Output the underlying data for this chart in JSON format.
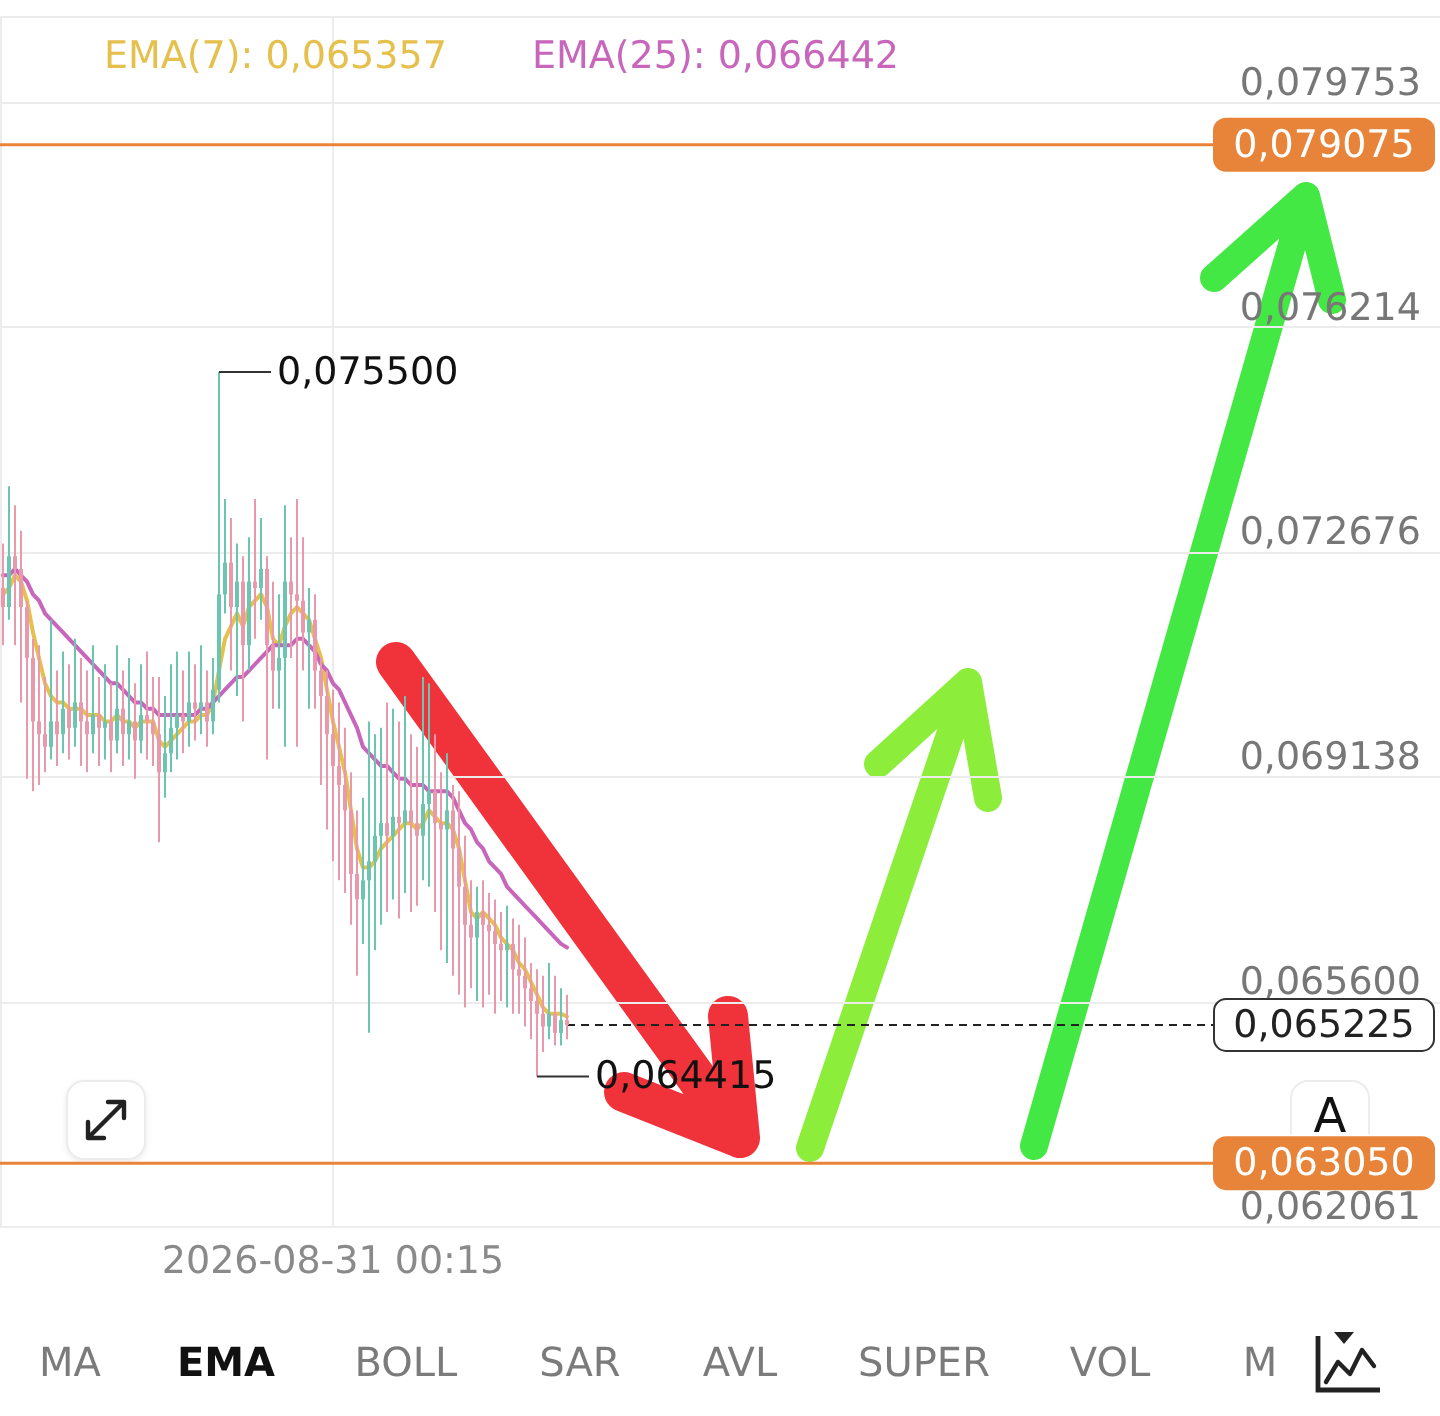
{
  "chart_data": {
    "type": "candlestick",
    "categories": [
      null,
      null,
      null,
      null,
      null,
      null,
      null,
      null,
      null,
      null,
      null,
      null,
      null,
      null,
      null,
      null,
      null,
      null,
      null,
      null,
      null,
      null,
      null,
      null,
      null,
      null,
      null,
      null,
      null,
      null,
      null,
      null,
      null,
      null,
      null,
      null,
      null,
      null,
      null,
      null,
      null,
      null,
      null,
      null,
      null,
      null,
      null,
      null,
      null,
      null,
      null,
      null,
      null,
      null,
      null,
      "2026-08-31 00:15",
      null,
      null,
      null,
      null,
      null,
      null,
      null,
      null,
      null,
      null,
      null,
      null,
      null,
      null,
      null,
      null,
      null,
      null,
      null,
      null,
      null,
      null,
      null,
      null,
      null,
      null,
      null,
      null,
      null,
      null,
      null,
      null,
      null,
      null,
      null,
      null,
      null,
      null,
      null,
      null,
      null,
      null,
      null,
      null,
      null,
      null,
      null,
      null,
      null,
      null,
      null,
      null,
      null,
      null,
      null,
      null,
      null,
      null,
      null,
      null,
      null,
      null,
      null,
      null,
      null,
      null,
      null,
      null,
      null,
      null,
      null,
      null,
      null,
      null,
      null,
      null,
      null,
      null,
      null,
      null,
      null,
      null,
      null,
      null,
      null,
      null,
      null,
      null,
      null,
      null,
      null,
      null,
      null,
      null,
      null,
      null,
      null,
      null,
      null,
      null,
      null,
      null,
      null,
      null,
      null,
      null,
      null,
      null,
      null,
      null,
      null,
      null,
      null,
      null,
      null,
      null,
      null,
      null,
      null,
      null,
      null,
      null,
      null,
      null,
      null,
      null,
      null,
      null,
      null,
      null,
      null,
      null,
      null,
      null,
      null,
      null,
      null,
      null,
      null,
      null,
      null,
      null,
      null,
      null,
      null,
      null,
      null,
      null,
      null,
      null,
      null,
      null,
      null,
      null,
      null,
      null,
      null,
      null,
      null,
      null,
      null,
      null,
      null,
      null,
      null,
      null,
      null,
      null,
      null,
      null,
      null,
      null,
      null,
      null,
      null,
      null,
      null,
      null,
      null,
      null,
      null,
      null,
      null,
      null
    ],
    "ohlc": [
      [
        0.0721,
        0.0728,
        0.0712,
        0.0718
      ],
      [
        0.0718,
        0.0737,
        0.0716,
        0.0726
      ],
      [
        0.0726,
        0.0734,
        0.0712,
        0.0724
      ],
      [
        0.0724,
        0.073,
        0.0703,
        0.0718
      ],
      [
        0.0718,
        0.0719,
        0.0691,
        0.071
      ],
      [
        0.071,
        0.0713,
        0.0689,
        0.07
      ],
      [
        0.07,
        0.0712,
        0.069,
        0.0698
      ],
      [
        0.0698,
        0.0707,
        0.0692,
        0.0696
      ],
      [
        0.0696,
        0.0716,
        0.0694,
        0.07
      ],
      [
        0.07,
        0.0708,
        0.0693,
        0.0698
      ],
      [
        0.0698,
        0.0711,
        0.0695,
        0.0702
      ],
      [
        0.0702,
        0.0709,
        0.0694,
        0.0699
      ],
      [
        0.0699,
        0.0713,
        0.0696,
        0.0703
      ],
      [
        0.0703,
        0.071,
        0.0693,
        0.07
      ],
      [
        0.07,
        0.0708,
        0.0692,
        0.0698
      ],
      [
        0.0698,
        0.0712,
        0.0695,
        0.0701
      ],
      [
        0.0701,
        0.0707,
        0.0693,
        0.0699
      ],
      [
        0.0699,
        0.0709,
        0.0694,
        0.07
      ],
      [
        0.07,
        0.0706,
        0.0692,
        0.0697
      ],
      [
        0.0697,
        0.0712,
        0.0695,
        0.0702
      ],
      [
        0.0702,
        0.0708,
        0.0693,
        0.0698
      ],
      [
        0.0698,
        0.071,
        0.0694,
        0.07
      ],
      [
        0.07,
        0.0706,
        0.0691,
        0.0697
      ],
      [
        0.0697,
        0.0709,
        0.0695,
        0.0701
      ],
      [
        0.0701,
        0.0711,
        0.0694,
        0.07
      ],
      [
        0.07,
        0.0707,
        0.0693,
        0.0698
      ],
      [
        0.0698,
        0.0707,
        0.0681,
        0.0692
      ],
      [
        0.0692,
        0.0704,
        0.0688,
        0.0695
      ],
      [
        0.0695,
        0.0709,
        0.0692,
        0.0699
      ],
      [
        0.0699,
        0.0711,
        0.0694,
        0.0701
      ],
      [
        0.0701,
        0.0708,
        0.0695,
        0.07
      ],
      [
        0.07,
        0.0711,
        0.0696,
        0.0703
      ],
      [
        0.0703,
        0.0709,
        0.0697,
        0.0702
      ],
      [
        0.0702,
        0.0712,
        0.0698,
        0.0703
      ],
      [
        0.0703,
        0.0708,
        0.0696,
        0.07
      ],
      [
        0.07,
        0.071,
        0.0698,
        0.0705
      ],
      [
        0.0705,
        0.0755,
        0.0703,
        0.072
      ],
      [
        0.072,
        0.0735,
        0.0717,
        0.0725
      ],
      [
        0.0725,
        0.0732,
        0.0708,
        0.0718
      ],
      [
        0.0718,
        0.0728,
        0.0704,
        0.0722
      ],
      [
        0.0722,
        0.0726,
        0.07,
        0.0712
      ],
      [
        0.0712,
        0.0729,
        0.0708,
        0.0722
      ],
      [
        0.0722,
        0.0735,
        0.0713,
        0.0721
      ],
      [
        0.0721,
        0.0732,
        0.0716,
        0.0724
      ],
      [
        0.0724,
        0.0726,
        0.0694,
        0.0712
      ],
      [
        0.0712,
        0.0722,
        0.0702,
        0.0708
      ],
      [
        0.0708,
        0.072,
        0.0702,
        0.071
      ],
      [
        0.071,
        0.0734,
        0.0696,
        0.0722
      ],
      [
        0.0722,
        0.0729,
        0.071,
        0.072
      ],
      [
        0.072,
        0.0735,
        0.0696,
        0.0719
      ],
      [
        0.0719,
        0.0729,
        0.0708,
        0.0714
      ],
      [
        0.0714,
        0.0721,
        0.0702,
        0.0716
      ],
      [
        0.0716,
        0.072,
        0.0702,
        0.0708
      ],
      [
        0.0708,
        0.071,
        0.069,
        0.0704
      ],
      [
        0.0704,
        0.0708,
        0.0683,
        0.0698
      ],
      [
        0.0698,
        0.0705,
        0.0678,
        0.0693
      ],
      [
        0.0693,
        0.0703,
        0.0675,
        0.069
      ],
      [
        0.069,
        0.0699,
        0.0673,
        0.0686
      ],
      [
        0.0686,
        0.0692,
        0.0668,
        0.0676
      ],
      [
        0.0676,
        0.0686,
        0.066,
        0.0672
      ],
      [
        0.0672,
        0.0688,
        0.0665,
        0.0675
      ],
      [
        0.0675,
        0.07,
        0.0651,
        0.0678
      ],
      [
        0.0678,
        0.0698,
        0.0664,
        0.0682
      ],
      [
        0.0682,
        0.0699,
        0.0668,
        0.0684
      ],
      [
        0.0684,
        0.0703,
        0.067,
        0.0682
      ],
      [
        0.0682,
        0.0702,
        0.0672,
        0.0685
      ],
      [
        0.0685,
        0.07,
        0.0669,
        0.0684
      ],
      [
        0.0684,
        0.0704,
        0.0673,
        0.0686
      ],
      [
        0.0686,
        0.0698,
        0.067,
        0.0684
      ],
      [
        0.0684,
        0.0696,
        0.0671,
        0.0682
      ],
      [
        0.0682,
        0.0707,
        0.0675,
        0.0687
      ],
      [
        0.0687,
        0.0706,
        0.0674,
        0.0689
      ],
      [
        0.0689,
        0.0698,
        0.067,
        0.0684
      ],
      [
        0.0684,
        0.0692,
        0.0664,
        0.0683
      ],
      [
        0.0683,
        0.0695,
        0.0662,
        0.0686
      ],
      [
        0.0686,
        0.069,
        0.066,
        0.068
      ],
      [
        0.068,
        0.0689,
        0.0657,
        0.0674
      ],
      [
        0.0674,
        0.0682,
        0.0655,
        0.0668
      ],
      [
        0.0668,
        0.0675,
        0.0658,
        0.0666
      ],
      [
        0.0666,
        0.0674,
        0.0656,
        0.067
      ],
      [
        0.067,
        0.0675,
        0.0655,
        0.0668
      ],
      [
        0.0668,
        0.0673,
        0.0657,
        0.0667
      ],
      [
        0.0667,
        0.0672,
        0.0654,
        0.0665
      ],
      [
        0.0665,
        0.067,
        0.0656,
        0.0664
      ],
      [
        0.0664,
        0.0671,
        0.0655,
        0.0665
      ],
      [
        0.0665,
        0.0669,
        0.0654,
        0.0661
      ],
      [
        0.0661,
        0.0668,
        0.0654,
        0.066
      ],
      [
        0.066,
        0.0666,
        0.0652,
        0.0658
      ],
      [
        0.0658,
        0.0662,
        0.065,
        0.0656
      ],
      [
        0.0656,
        0.0661,
        0.064415,
        0.0654
      ],
      [
        0.0654,
        0.066,
        0.0648,
        0.0652
      ],
      [
        0.0652,
        0.0662,
        0.065,
        0.0654
      ],
      [
        0.0654,
        0.066,
        0.0649,
        0.0651
      ],
      [
        0.0651,
        0.0658,
        0.0649,
        0.0653
      ],
      [
        0.0653,
        0.0657,
        0.065,
        0.065225
      ],
      null,
      null,
      null,
      null,
      null,
      null,
      null,
      null,
      null,
      null,
      null,
      null,
      null,
      null,
      null,
      null,
      null,
      null,
      null,
      null,
      null,
      null,
      null,
      null,
      null,
      null,
      null,
      null,
      null,
      null,
      null,
      null,
      null,
      null,
      null,
      null,
      null,
      null,
      null,
      null,
      null,
      null,
      null,
      null,
      null,
      null,
      null,
      null,
      null,
      null,
      null,
      null,
      null,
      null,
      null,
      null,
      null,
      null,
      null,
      null,
      null,
      null,
      null,
      null,
      null,
      null,
      null,
      null,
      null,
      null,
      null,
      null,
      null,
      null,
      null,
      null,
      null,
      null,
      null,
      null,
      null,
      null,
      null,
      null,
      null,
      null,
      null,
      null,
      null,
      null,
      null,
      null,
      null,
      null,
      null,
      null,
      null,
      null,
      null,
      null,
      null,
      null,
      null,
      null,
      null,
      null,
      null,
      null,
      null,
      null,
      null,
      null,
      null,
      null,
      null,
      null,
      null,
      null,
      null,
      null,
      null,
      null,
      null,
      null,
      null,
      null,
      null,
      null,
      null,
      null,
      null,
      null,
      null,
      null,
      null,
      null,
      null,
      null,
      null,
      null,
      null,
      null,
      null,
      null,
      null
    ],
    "colors": [
      "#e89aac",
      "#6cc5b0",
      "#e89aac",
      "#e89aac",
      "#e89aac",
      "#e89aac",
      "#e89aac",
      "#e89aac",
      "#6cc5b0",
      "#e89aac",
      "#6cc5b0",
      "#e89aac",
      "#6cc5b0",
      "#e89aac",
      "#e89aac",
      "#6cc5b0",
      "#e89aac",
      "#6cc5b0",
      "#e89aac",
      "#6cc5b0",
      "#e89aac",
      "#6cc5b0",
      "#e89aac",
      "#6cc5b0",
      "#e89aac",
      "#e89aac",
      "#e89aac",
      "#6cc5b0",
      "#6cc5b0",
      "#6cc5b0",
      "#e89aac",
      "#6cc5b0",
      "#e89aac",
      "#6cc5b0",
      "#e89aac",
      "#6cc5b0",
      "#6cc5b0",
      "#6cc5b0",
      "#e89aac",
      "#6cc5b0",
      "#e89aac",
      "#6cc5b0",
      "#e89aac",
      "#6cc5b0",
      "#e89aac",
      "#e89aac",
      "#6cc5b0",
      "#6cc5b0",
      "#e89aac",
      "#e89aac",
      "#e89aac",
      "#6cc5b0",
      "#e89aac",
      "#e89aac",
      "#e89aac",
      "#e89aac",
      "#e89aac",
      "#e89aac",
      "#e89aac",
      "#e89aac",
      "#6cc5b0",
      "#6cc5b0",
      "#6cc5b0",
      "#6cc5b0",
      "#e89aac",
      "#6cc5b0",
      "#e89aac",
      "#6cc5b0",
      "#e89aac",
      "#e89aac",
      "#6cc5b0",
      "#6cc5b0",
      "#e89aac",
      "#e89aac",
      "#6cc5b0",
      "#e89aac",
      "#e89aac",
      "#e89aac",
      "#e89aac",
      "#6cc5b0",
      "#e89aac",
      "#e89aac",
      "#e89aac",
      "#e89aac",
      "#6cc5b0",
      "#e89aac",
      "#e89aac",
      "#e89aac",
      "#e89aac",
      "#e89aac",
      "#e89aac",
      "#6cc5b0",
      "#e89aac",
      "#6cc5b0",
      "#e89aac",
      null,
      null,
      null,
      null,
      null,
      null,
      null,
      null,
      null,
      null,
      null,
      null,
      null,
      null,
      null,
      null,
      null,
      null,
      null,
      null,
      null,
      null,
      null,
      null,
      null,
      null,
      null,
      null,
      null,
      null,
      null,
      null,
      null,
      null,
      null,
      null,
      null,
      null,
      null,
      null,
      null,
      null,
      null,
      null,
      null,
      null,
      null,
      null,
      null,
      null,
      null,
      null,
      null,
      null,
      null,
      null,
      null,
      null,
      null,
      null,
      null,
      null,
      null,
      null,
      null,
      null,
      null,
      null,
      null,
      null,
      null,
      null,
      null,
      null,
      null,
      null,
      null,
      null,
      null,
      null,
      null,
      null,
      null,
      null,
      null,
      null,
      null,
      null,
      null,
      null,
      null,
      null,
      null,
      null,
      null,
      null,
      null,
      null,
      null,
      null,
      null,
      null,
      null,
      null,
      null,
      null,
      null,
      null,
      null,
      null,
      null,
      null,
      null,
      null,
      null,
      null,
      null,
      null,
      null,
      null,
      null,
      null,
      null,
      null,
      null,
      null,
      null,
      null,
      null,
      null,
      null,
      null,
      null,
      null,
      null,
      null,
      null,
      null,
      null,
      null,
      null,
      null,
      null,
      null,
      null
    ],
    "series": [
      {
        "type": "line",
        "name": "EMA(7): 0,065357",
        "color": "#e6c04c",
        "values": [
          0.072,
          0.0721,
          0.0723,
          0.0722,
          0.0719,
          0.0714,
          0.071,
          0.0706,
          0.0704,
          0.0703,
          0.0703,
          0.0702,
          0.0702,
          0.0702,
          0.0701,
          0.0701,
          0.0701,
          0.07,
          0.07,
          0.0701,
          0.07,
          0.07,
          0.0699,
          0.07,
          0.07,
          0.07,
          0.0697,
          0.0696,
          0.0697,
          0.0698,
          0.0699,
          0.07,
          0.07,
          0.0701,
          0.0701,
          0.0703,
          0.0708,
          0.0713,
          0.0715,
          0.0717,
          0.0715,
          0.0718,
          0.0719,
          0.072,
          0.0718,
          0.0713,
          0.0712,
          0.0715,
          0.0717,
          0.0718,
          0.0717,
          0.0716,
          0.0713,
          0.071,
          0.0705,
          0.07,
          0.0696,
          0.0692,
          0.0686,
          0.068,
          0.0677,
          0.0677,
          0.0678,
          0.068,
          0.0681,
          0.0682,
          0.0683,
          0.0684,
          0.0684,
          0.0683,
          0.0684,
          0.0686,
          0.0685,
          0.0684,
          0.0684,
          0.0683,
          0.068,
          0.0675,
          0.067,
          0.0669,
          0.067,
          0.0669,
          0.0668,
          0.0666,
          0.0665,
          0.0664,
          0.0662,
          0.0661,
          0.0659,
          0.0657,
          0.0655,
          0.0654,
          0.0654,
          0.0654,
          0.065357,
          null,
          null,
          null,
          null,
          null,
          null,
          null,
          null,
          null,
          null,
          null,
          null,
          null,
          null,
          null,
          null,
          null,
          null,
          null,
          null,
          null,
          null,
          null,
          null,
          null,
          null,
          null,
          null,
          null,
          null,
          null,
          null,
          null,
          null,
          null,
          null,
          null,
          null,
          null,
          null,
          null,
          null,
          null,
          null,
          null,
          null,
          null,
          null,
          null,
          null,
          null,
          null,
          null,
          null,
          null,
          null,
          null,
          null,
          null,
          null,
          null,
          null,
          null,
          null,
          null,
          null,
          null,
          null,
          null,
          null,
          null,
          null,
          null,
          null,
          null,
          null,
          null,
          null,
          null,
          null,
          null,
          null,
          null,
          null,
          null,
          null,
          null,
          null,
          null,
          null,
          null,
          null,
          null,
          null,
          null,
          null,
          null,
          null,
          null,
          null,
          null,
          null,
          null,
          null,
          null,
          null,
          null,
          null,
          null,
          null,
          null,
          null,
          null,
          null,
          null,
          null,
          null,
          null,
          null,
          null,
          null,
          null,
          null,
          null,
          null,
          null,
          null,
          null,
          null,
          null,
          null,
          null,
          null,
          null,
          null,
          null,
          null,
          null,
          null,
          null,
          null,
          null,
          null,
          null,
          null
        ]
      },
      {
        "type": "line",
        "name": "EMA(25): 0,066442",
        "color": "#c766bb",
        "values": [
          0.0723,
          0.0723,
          0.0724,
          0.0723,
          0.0722,
          0.072,
          0.0719,
          0.0717,
          0.0716,
          0.0715,
          0.0714,
          0.0713,
          0.0712,
          0.0711,
          0.071,
          0.0709,
          0.0708,
          0.0707,
          0.0706,
          0.0706,
          0.0705,
          0.0704,
          0.0703,
          0.0703,
          0.0702,
          0.0702,
          0.0701,
          0.0701,
          0.0701,
          0.0701,
          0.0701,
          0.0701,
          0.0701,
          0.0702,
          0.0702,
          0.0703,
          0.0704,
          0.0705,
          0.0706,
          0.0707,
          0.0707,
          0.0708,
          0.0709,
          0.071,
          0.0711,
          0.0712,
          0.0712,
          0.0712,
          0.0712,
          0.0713,
          0.0713,
          0.0712,
          0.0711,
          0.0709,
          0.0708,
          0.0706,
          0.0705,
          0.0703,
          0.0701,
          0.0699,
          0.0696,
          0.0695,
          0.0694,
          0.0693,
          0.0693,
          0.0692,
          0.0691,
          0.0691,
          0.069,
          0.069,
          0.069,
          0.0689,
          0.0689,
          0.0689,
          0.0689,
          0.0688,
          0.0686,
          0.0684,
          0.0683,
          0.0681,
          0.068,
          0.0678,
          0.0677,
          0.0676,
          0.0674,
          0.0673,
          0.0672,
          0.0671,
          0.067,
          0.0669,
          0.0668,
          0.0667,
          0.0666,
          0.0665,
          0.066442,
          null,
          null,
          null,
          null,
          null,
          null,
          null,
          null,
          null,
          null,
          null,
          null,
          null,
          null,
          null,
          null,
          null,
          null,
          null,
          null,
          null,
          null,
          null,
          null,
          null,
          null,
          null,
          null,
          null,
          null,
          null,
          null,
          null,
          null,
          null,
          null,
          null,
          null,
          null,
          null,
          null,
          null,
          null,
          null,
          null,
          null,
          null,
          null,
          null,
          null,
          null,
          null,
          null,
          null,
          null,
          null,
          null,
          null,
          null,
          null,
          null,
          null,
          null,
          null,
          null,
          null,
          null,
          null,
          null,
          null,
          null,
          null,
          null,
          null,
          null,
          null,
          null,
          null,
          null,
          null,
          null,
          null,
          null,
          null,
          null,
          null,
          null,
          null,
          null,
          null,
          null,
          null,
          null,
          null,
          null,
          null,
          null,
          null,
          null,
          null,
          null,
          null,
          null,
          null,
          null,
          null,
          null,
          null,
          null,
          null,
          null,
          null,
          null,
          null,
          null,
          null,
          null,
          null,
          null,
          null,
          null,
          null,
          null,
          null,
          null,
          null,
          null,
          null,
          null,
          null,
          null,
          null,
          null,
          null,
          null,
          null,
          null,
          null,
          null,
          null,
          null,
          null,
          null,
          null,
          null
        ]
      }
    ],
    "ylim": [
      0.062061,
      0.0811
    ],
    "yticks": [
      {
        "value": 0.062061,
        "label": "0,062061"
      },
      {
        "value": 0.0656,
        "label": "0,065600"
      },
      {
        "value": 0.069138,
        "label": "0,069138"
      },
      {
        "value": 0.072676,
        "label": "0,072676"
      },
      {
        "value": 0.076214,
        "label": "0,076214"
      },
      {
        "value": 0.079753,
        "label": "0,079753"
      }
    ],
    "ref_lines": [
      {
        "axis": "y",
        "value": 0.079075,
        "label": "0,079075",
        "color": "#e8843a"
      },
      {
        "axis": "y",
        "value": 0.06305,
        "label": "0,063050",
        "color": "#e8843a"
      },
      {
        "axis": "y",
        "value": 0.065225,
        "label": "0,065225",
        "color": "#222222",
        "line_style": "dashed"
      }
    ],
    "annotations": [
      "0,075500",
      "0,064415",
      "A",
      "MA",
      "EMA",
      "BOLL",
      "SAR",
      "AVL",
      "SUPER",
      "VOL",
      "M"
    ],
    "legend": "top left",
    "grid": true
  }
}
